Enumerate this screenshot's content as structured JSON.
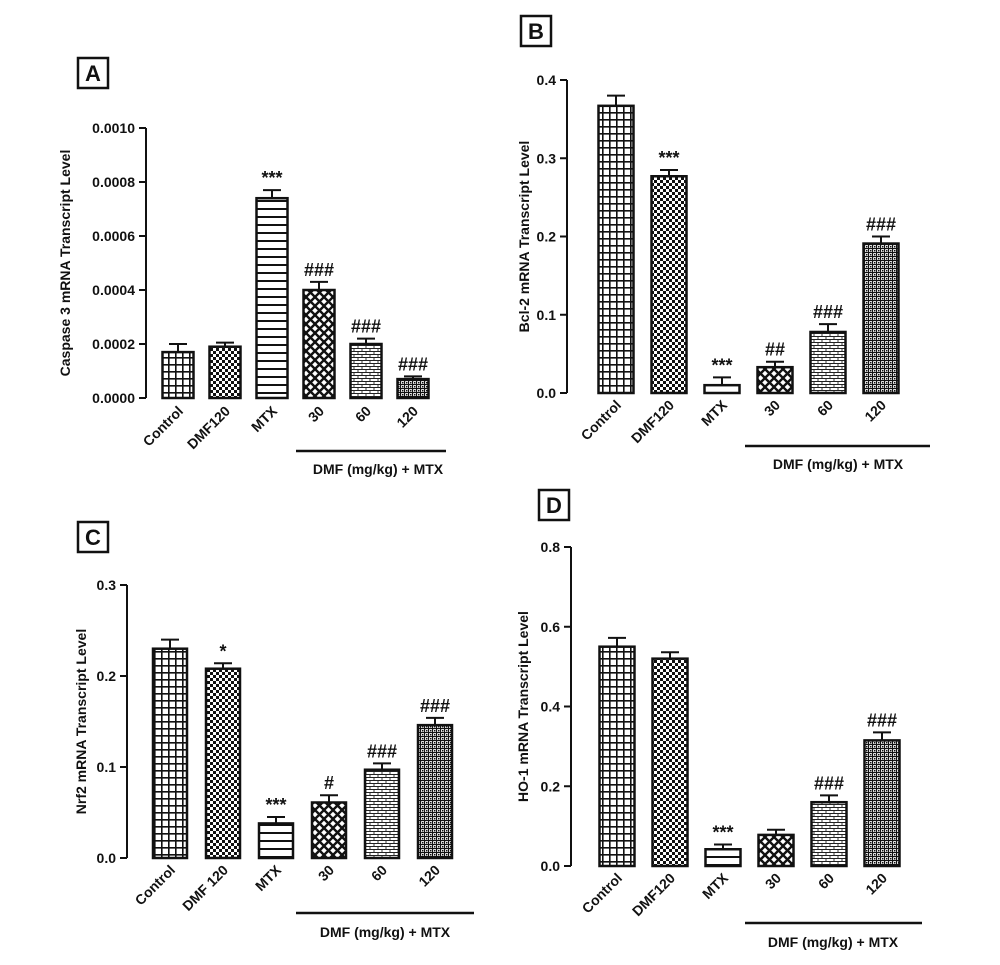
{
  "chart_data": [
    {
      "panel": "A",
      "type": "bar",
      "ylabel": "Caspase 3 mRNA Transcript Level",
      "categories": [
        "Control",
        "DMF120",
        "MTX",
        "30",
        "60",
        "120"
      ],
      "group_label": "DMF (mg/kg) + MTX",
      "values": [
        0.00017,
        0.00019,
        0.00074,
        0.0004,
        0.0002,
        7e-05
      ],
      "errors": [
        3e-05,
        1.5e-05,
        3e-05,
        3e-05,
        2e-05,
        1e-05
      ],
      "significance": [
        "",
        "",
        "***",
        "###",
        "###",
        "###"
      ],
      "patterns": [
        "grid",
        "checker",
        "hlines",
        "diamond",
        "brick",
        "dense"
      ],
      "ylim": [
        0,
        0.001
      ],
      "yticks": [
        0,
        0.0002,
        0.0004,
        0.0006,
        0.0008,
        0.001
      ],
      "ytick_labels": [
        "0.0000",
        "0.0002",
        "0.0004",
        "0.0006",
        "0.0008",
        "0.0010"
      ]
    },
    {
      "panel": "B",
      "type": "bar",
      "ylabel": "Bcl-2 mRNA Transcript Level",
      "categories": [
        "Control",
        "DMF120",
        "MTX",
        "30",
        "60",
        "120"
      ],
      "group_label": "DMF (mg/kg) + MTX",
      "values": [
        0.367,
        0.277,
        0.01,
        0.033,
        0.078,
        0.191
      ],
      "errors": [
        0.013,
        0.008,
        0.01,
        0.007,
        0.01,
        0.009
      ],
      "significance": [
        "",
        "***",
        "***",
        "##",
        "###",
        "###"
      ],
      "patterns": [
        "grid",
        "checker",
        "hlines",
        "diamond",
        "brick",
        "dense"
      ],
      "ylim": [
        0,
        0.4
      ],
      "yticks": [
        0,
        0.1,
        0.2,
        0.3,
        0.4
      ],
      "ytick_labels": [
        "0.0",
        "0.1",
        "0.2",
        "0.3",
        "0.4"
      ]
    },
    {
      "panel": "C",
      "type": "bar",
      "ylabel": "Nrf2 mRNA Transcript Level",
      "categories": [
        "Control",
        "DMF 120",
        "MTX",
        "30",
        "60",
        "120"
      ],
      "group_label": "DMF (mg/kg) + MTX",
      "values": [
        0.23,
        0.208,
        0.038,
        0.061,
        0.097,
        0.146
      ],
      "errors": [
        0.01,
        0.006,
        0.007,
        0.008,
        0.007,
        0.008
      ],
      "significance": [
        "",
        "*",
        "***",
        "#",
        "###",
        "###"
      ],
      "patterns": [
        "grid",
        "checker",
        "hlines",
        "diamond",
        "brick",
        "dense"
      ],
      "ylim": [
        0,
        0.3
      ],
      "yticks": [
        0,
        0.1,
        0.2,
        0.3
      ],
      "ytick_labels": [
        "0.0",
        "0.1",
        "0.2",
        "0.3"
      ]
    },
    {
      "panel": "D",
      "type": "bar",
      "ylabel": "HO-1 mRNA Transcript Level",
      "categories": [
        "Control",
        "DMF120",
        "MTX",
        "30",
        "60",
        "120"
      ],
      "group_label": "DMF (mg/kg) + MTX",
      "values": [
        0.55,
        0.52,
        0.042,
        0.078,
        0.16,
        0.315
      ],
      "errors": [
        0.022,
        0.016,
        0.012,
        0.013,
        0.017,
        0.02
      ],
      "significance": [
        "",
        "",
        "***",
        "",
        "###",
        "###"
      ],
      "patterns": [
        "grid",
        "checker",
        "hlines",
        "diamond",
        "brick",
        "dense"
      ],
      "ylim": [
        0,
        0.8
      ],
      "yticks": [
        0,
        0.2,
        0.4,
        0.6,
        0.8
      ],
      "ytick_labels": [
        "0.0",
        "0.2",
        "0.4",
        "0.6",
        "0.8"
      ]
    }
  ]
}
